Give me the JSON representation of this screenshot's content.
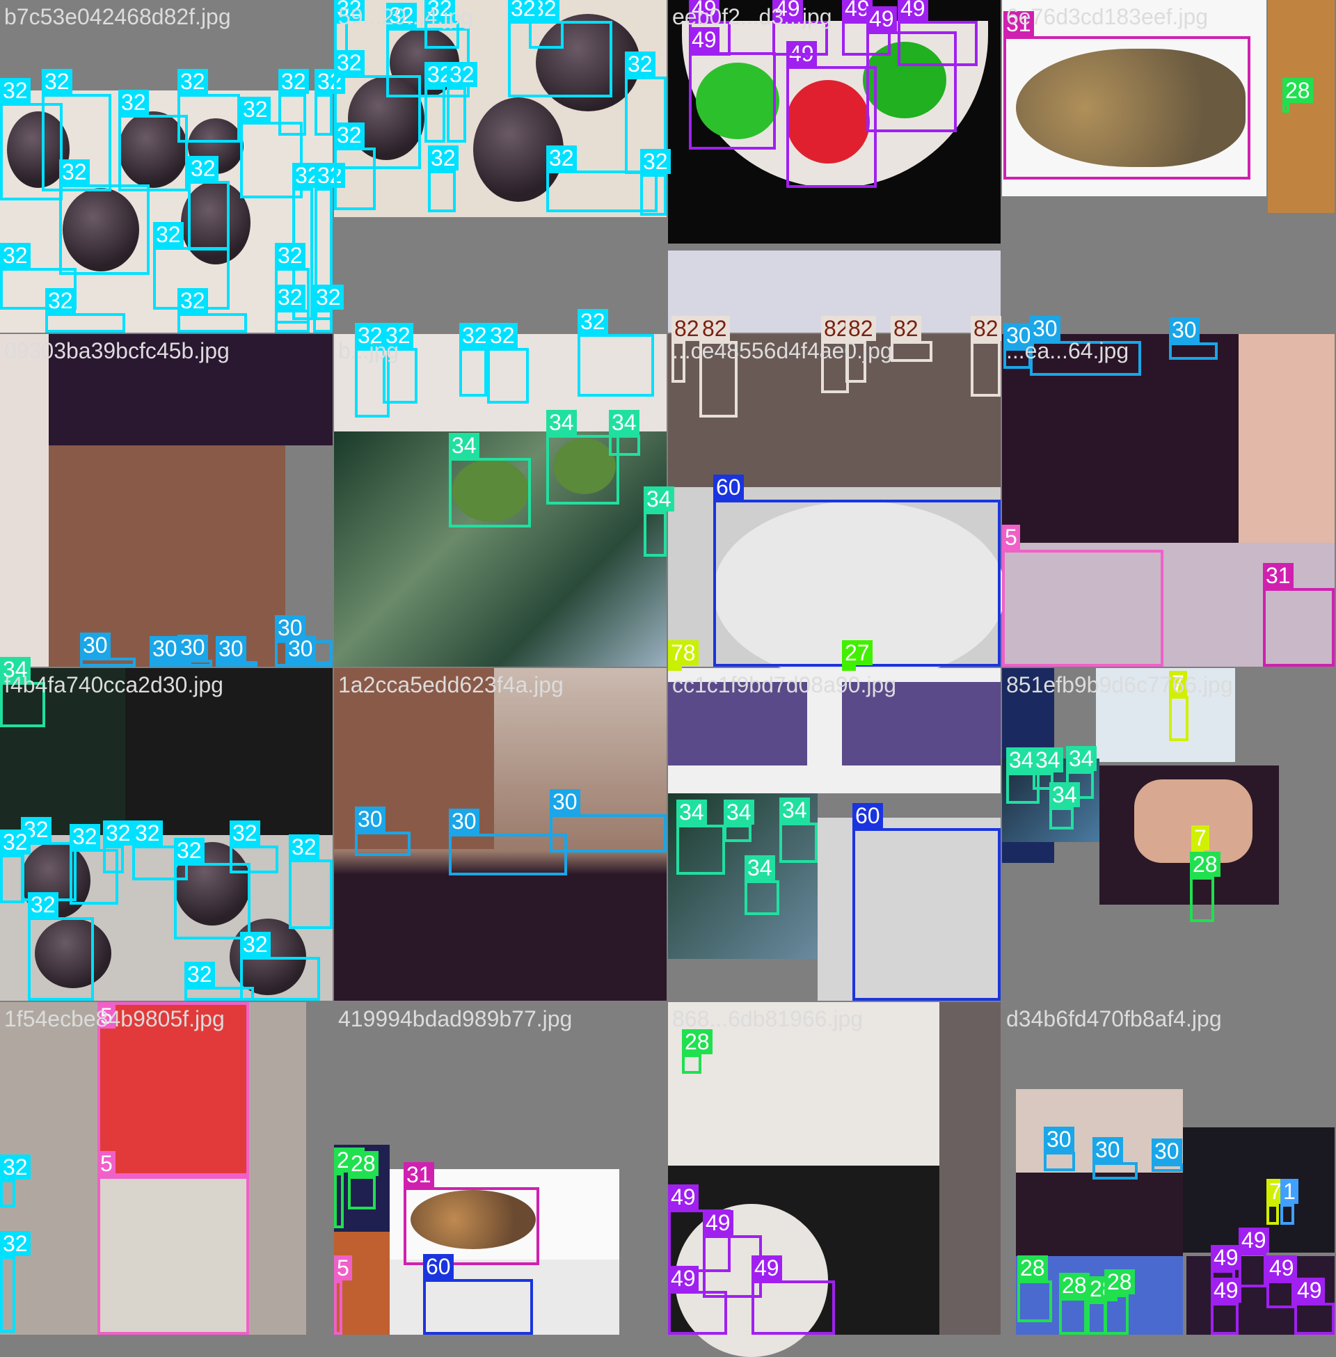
{
  "tiles": [
    {
      "file": "b7c53e042468d82f.jpg",
      "labels": [
        "32",
        "32",
        "32",
        "32",
        "32",
        "32",
        "32",
        "32",
        "32",
        "32",
        "32",
        "32",
        "32",
        "32",
        "32",
        "32",
        "32",
        "32"
      ]
    },
    {
      "file": "59...29...4.jpg",
      "labels": [
        "32",
        "32",
        "32",
        "32",
        "32",
        "32",
        "32",
        "32",
        "32",
        "32",
        "32",
        "32",
        "32"
      ]
    },
    {
      "file": "eeb0f2...d3...jpg",
      "labels": [
        "49",
        "49",
        "49",
        "49",
        "49",
        "49",
        "49"
      ]
    },
    {
      "file": "6e76d3cd183eef.jpg",
      "labels": [
        "31",
        "28"
      ]
    },
    {
      "file": "09303ba39bcfc45b.jpg",
      "labels": [
        "30",
        "30",
        "30",
        "30",
        "30",
        "30"
      ]
    },
    {
      "file": "b...jpg",
      "labels": [
        "32",
        "32",
        "32",
        "32",
        "32",
        "34",
        "34",
        "34",
        "34"
      ]
    },
    {
      "file": "...ce48556d4f4ae0.jpg",
      "labels": [
        "82",
        "82",
        "82",
        "82",
        "82",
        "82",
        "60",
        "78",
        "27"
      ]
    },
    {
      "file": "...ea...64.jpg",
      "labels": [
        "30",
        "30",
        "30",
        "5",
        "31"
      ]
    },
    {
      "file": "f4b4fa740cca2d30.jpg",
      "labels": [
        "34",
        "32",
        "32",
        "32",
        "32",
        "32",
        "32",
        "32",
        "32",
        "32",
        "32",
        "32"
      ]
    },
    {
      "file": "1a2cca5edd623f4a.jpg",
      "labels": [
        "30",
        "30",
        "30"
      ]
    },
    {
      "file": "cc1c1f9bd7d08a90.jpg",
      "labels": [
        "60",
        "34",
        "34",
        "34",
        "34"
      ]
    },
    {
      "file": "851efb9b9d6c7766.jpg",
      "labels": [
        "7",
        "34",
        "34",
        "34",
        "34",
        "7",
        "28"
      ]
    },
    {
      "file": "1f54ecbe84b9805f.jpg",
      "labels": [
        "5",
        "5",
        "32",
        "32"
      ]
    },
    {
      "file": "419994bdad989b77.jpg",
      "labels": [
        "28",
        "28",
        "31",
        "5",
        "60"
      ]
    },
    {
      "file": "868...6db81966.jpg",
      "labels": [
        "28",
        "49",
        "49",
        "49",
        "49"
      ]
    },
    {
      "file": "d34b6fd470fb8af4.jpg",
      "labels": [
        "30",
        "30",
        "30",
        "28",
        "28",
        "28",
        "28",
        "7",
        "1",
        "49",
        "49",
        "49",
        "49",
        "49"
      ]
    }
  ],
  "colors": {
    "32": "#00e0ff",
    "30": "#1aa6e8",
    "34": "#20e0a0",
    "49": "#a020f0",
    "31": "#d020b0",
    "28": "#20e050",
    "82": "#7a2010",
    "60": "#1a34e0",
    "5": "#f060c8",
    "7": "#d0f000",
    "78": "#c8f000",
    "27": "#40f000",
    "1": "#40a0ff"
  }
}
